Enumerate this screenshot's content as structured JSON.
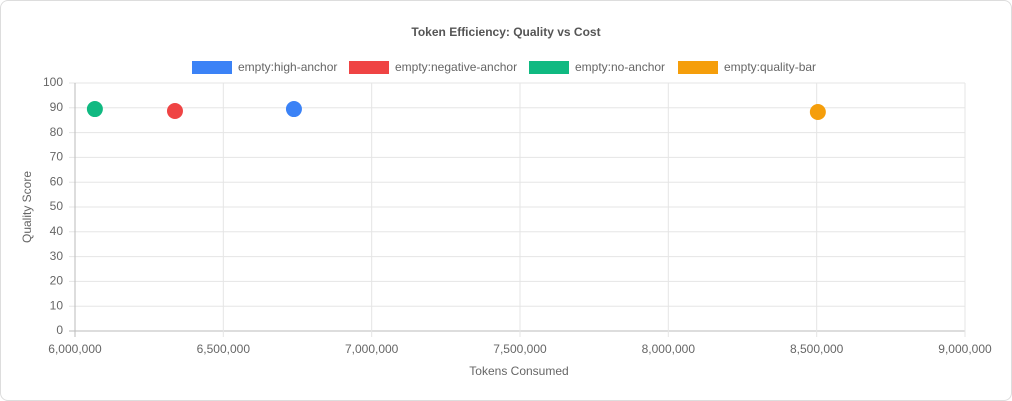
{
  "chart_data": {
    "type": "scatter",
    "title": "Token Efficiency: Quality vs Cost",
    "x_label": "Tokens Consumed",
    "y_label": "Quality Score",
    "series": [
      {
        "name": "empty:high-anchor",
        "color": "#3b82f6",
        "x": [
          6738000
        ],
        "values": [
          89.5
        ]
      },
      {
        "name": "empty:negative-anchor",
        "color": "#ef4444",
        "x": [
          6337000
        ],
        "values": [
          88.7
        ]
      },
      {
        "name": "empty:no-anchor",
        "color": "#10b981",
        "x": [
          6067000
        ],
        "values": [
          89.5
        ]
      },
      {
        "name": "empty:quality-bar",
        "color": "#f59e0b",
        "x": [
          8504000
        ],
        "values": [
          88.3
        ]
      }
    ],
    "xlim": [
      6000000,
      9000000
    ],
    "xticks": [
      {
        "value": 6000000,
        "label": "6,000,000"
      },
      {
        "value": 6500000,
        "label": "6,500,000"
      },
      {
        "value": 7000000,
        "label": "7,000,000"
      },
      {
        "value": 7500000,
        "label": "7,500,000"
      },
      {
        "value": 8000000,
        "label": "8,000,000"
      },
      {
        "value": 8500000,
        "label": "8,500,000"
      },
      {
        "value": 9000000,
        "label": "9,000,000"
      }
    ],
    "ylim": [
      0,
      100
    ],
    "yticks": [
      0,
      10,
      20,
      30,
      40,
      50,
      60,
      70,
      80,
      90,
      100
    ],
    "grid": true,
    "legend": "top"
  }
}
